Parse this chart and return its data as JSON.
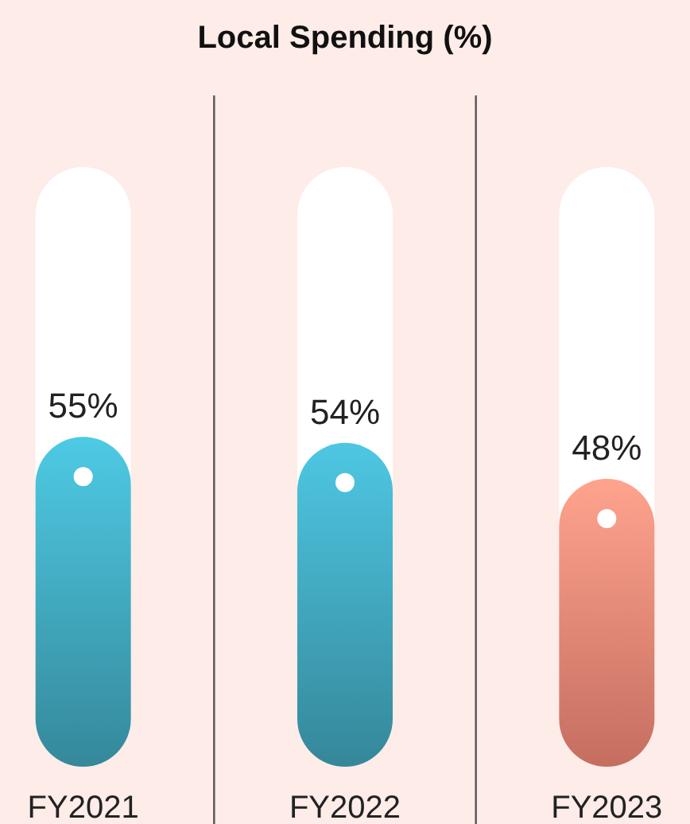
{
  "chart_data": {
    "type": "bar",
    "title": "Local Spending (%)",
    "categories": [
      "FY2021",
      "FY2022",
      "FY2023"
    ],
    "values": [
      55,
      54,
      48
    ],
    "colors": [
      "#3fa3b8",
      "#3fa1b7",
      "#ec8473"
    ],
    "value_labels": [
      "55%",
      "54%",
      "48%"
    ],
    "ylim": [
      0,
      100
    ],
    "tick_labels": "x"
  }
}
